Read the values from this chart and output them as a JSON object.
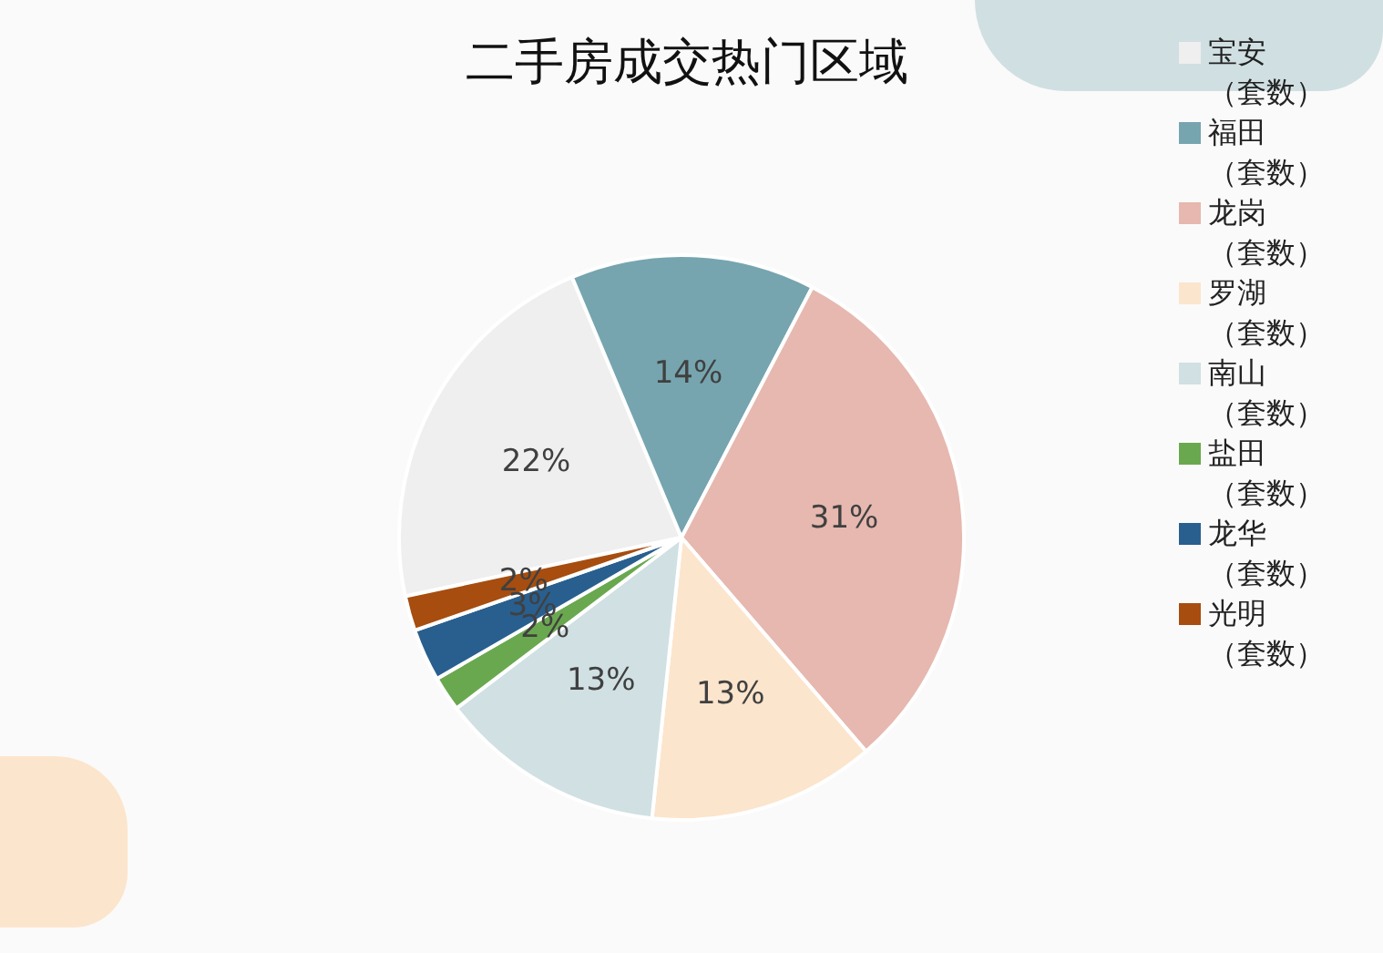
{
  "chart_data": {
    "type": "pie",
    "title": "二手房成交热门区域",
    "categories": [
      "宝安（套数）",
      "福田（套数）",
      "龙岗（套数）",
      "罗湖（套数）",
      "南山（套数）",
      "盐田（套数）",
      "龙华（套数）",
      "光明（套数）"
    ],
    "values": [
      22,
      14,
      31,
      13,
      13,
      2,
      3,
      2
    ],
    "value_labels": [
      "22%",
      "14%",
      "31%",
      "13%",
      "13%",
      "2%",
      "3%",
      "2%"
    ],
    "colors": [
      "#efefef",
      "#76a5af",
      "#e6b8af",
      "#fce5cd",
      "#d0e0e3",
      "#6aa84f",
      "#285f8f",
      "#a64d0f"
    ],
    "legend": "top right"
  }
}
